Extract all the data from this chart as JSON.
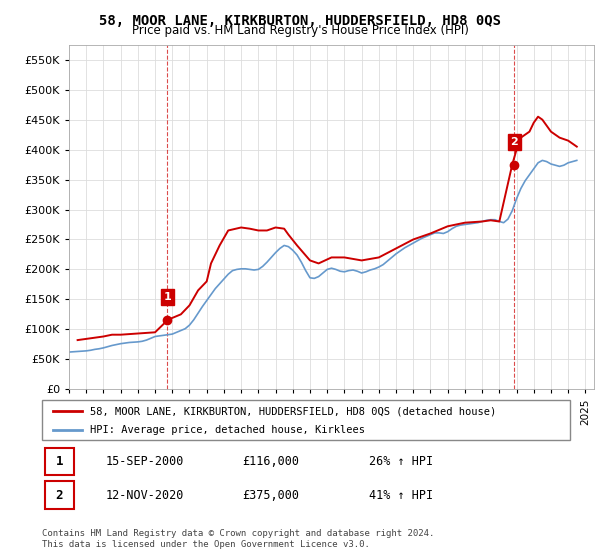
{
  "title": "58, MOOR LANE, KIRKBURTON, HUDDERSFIELD, HD8 0QS",
  "subtitle": "Price paid vs. HM Land Registry's House Price Index (HPI)",
  "legend_line1": "58, MOOR LANE, KIRKBURTON, HUDDERSFIELD, HD8 0QS (detached house)",
  "legend_line2": "HPI: Average price, detached house, Kirklees",
  "annotation1_label": "1",
  "annotation1_date": "15-SEP-2000",
  "annotation1_price": "£116,000",
  "annotation1_hpi": "26% ↑ HPI",
  "annotation2_label": "2",
  "annotation2_date": "12-NOV-2020",
  "annotation2_price": "£375,000",
  "annotation2_hpi": "41% ↑ HPI",
  "footnote": "Contains HM Land Registry data © Crown copyright and database right 2024.\nThis data is licensed under the Open Government Licence v3.0.",
  "red_color": "#cc0000",
  "blue_color": "#6699cc",
  "annotation_dot_color1": "#cc0000",
  "annotation_dot_color2": "#cc0000",
  "marker_box_color": "#cc2222",
  "ylim": [
    0,
    575000
  ],
  "yticks": [
    0,
    50000,
    100000,
    150000,
    200000,
    250000,
    300000,
    350000,
    400000,
    450000,
    500000,
    550000
  ],
  "hpi_data": {
    "dates": [
      1995.0,
      1995.25,
      1995.5,
      1995.75,
      1996.0,
      1996.25,
      1996.5,
      1996.75,
      1997.0,
      1997.25,
      1997.5,
      1997.75,
      1998.0,
      1998.25,
      1998.5,
      1998.75,
      1999.0,
      1999.25,
      1999.5,
      1999.75,
      2000.0,
      2000.25,
      2000.5,
      2000.75,
      2001.0,
      2001.25,
      2001.5,
      2001.75,
      2002.0,
      2002.25,
      2002.5,
      2002.75,
      2003.0,
      2003.25,
      2003.5,
      2003.75,
      2004.0,
      2004.25,
      2004.5,
      2004.75,
      2005.0,
      2005.25,
      2005.5,
      2005.75,
      2006.0,
      2006.25,
      2006.5,
      2006.75,
      2007.0,
      2007.25,
      2007.5,
      2007.75,
      2008.0,
      2008.25,
      2008.5,
      2008.75,
      2009.0,
      2009.25,
      2009.5,
      2009.75,
      2010.0,
      2010.25,
      2010.5,
      2010.75,
      2011.0,
      2011.25,
      2011.5,
      2011.75,
      2012.0,
      2012.25,
      2012.5,
      2012.75,
      2013.0,
      2013.25,
      2013.5,
      2013.75,
      2014.0,
      2014.25,
      2014.5,
      2014.75,
      2015.0,
      2015.25,
      2015.5,
      2015.75,
      2016.0,
      2016.25,
      2016.5,
      2016.75,
      2017.0,
      2017.25,
      2017.5,
      2017.75,
      2018.0,
      2018.25,
      2018.5,
      2018.75,
      2019.0,
      2019.25,
      2019.5,
      2019.75,
      2020.0,
      2020.25,
      2020.5,
      2020.75,
      2021.0,
      2021.25,
      2021.5,
      2021.75,
      2022.0,
      2022.25,
      2022.5,
      2022.75,
      2023.0,
      2023.25,
      2023.5,
      2023.75,
      2024.0,
      2024.25,
      2024.5
    ],
    "values": [
      62000,
      62500,
      63000,
      63500,
      64000,
      65000,
      66500,
      67500,
      69000,
      71000,
      73000,
      74500,
      76000,
      77000,
      78000,
      78500,
      79000,
      80000,
      82000,
      85000,
      88000,
      89000,
      90000,
      91000,
      92000,
      95000,
      98000,
      101000,
      107000,
      116000,
      127000,
      138000,
      148000,
      158000,
      168000,
      176000,
      184000,
      192000,
      198000,
      200000,
      201000,
      201000,
      200000,
      199000,
      200000,
      205000,
      212000,
      220000,
      228000,
      235000,
      240000,
      238000,
      232000,
      224000,
      212000,
      198000,
      186000,
      185000,
      188000,
      194000,
      200000,
      202000,
      200000,
      197000,
      196000,
      198000,
      199000,
      197000,
      194000,
      196000,
      199000,
      201000,
      204000,
      208000,
      214000,
      220000,
      226000,
      231000,
      236000,
      240000,
      244000,
      248000,
      252000,
      255000,
      258000,
      261000,
      261000,
      260000,
      263000,
      268000,
      272000,
      274000,
      275000,
      276000,
      277000,
      278000,
      280000,
      282000,
      283000,
      283000,
      280000,
      278000,
      284000,
      298000,
      318000,
      335000,
      348000,
      358000,
      368000,
      378000,
      382000,
      380000,
      376000,
      374000,
      372000,
      374000,
      378000,
      380000,
      382000
    ]
  },
  "property_data": {
    "dates": [
      1995.5,
      1996.0,
      1996.5,
      1997.0,
      1997.5,
      1998.0,
      1998.5,
      1999.0,
      1999.5,
      2000.0,
      2000.75,
      2001.5,
      2002.0,
      2002.5,
      2003.0,
      2003.25,
      2003.75,
      2004.25,
      2005.0,
      2005.5,
      2006.0,
      2006.5,
      2007.0,
      2007.5,
      2007.75,
      2008.25,
      2009.0,
      2009.5,
      2010.25,
      2011.0,
      2012.0,
      2013.0,
      2014.0,
      2015.0,
      2016.0,
      2017.0,
      2018.0,
      2019.0,
      2019.5,
      2020.0,
      2020.75,
      2021.0,
      2021.25,
      2021.75,
      2022.0,
      2022.25,
      2022.5,
      2022.75,
      2023.0,
      2023.5,
      2024.0,
      2024.25,
      2024.5
    ],
    "values": [
      82000,
      84000,
      86000,
      88000,
      91000,
      91000,
      92000,
      93000,
      94000,
      95000,
      116000,
      125000,
      140000,
      165000,
      180000,
      210000,
      240000,
      265000,
      270000,
      268000,
      265000,
      265000,
      270000,
      268000,
      258000,
      240000,
      215000,
      210000,
      220000,
      220000,
      215000,
      220000,
      235000,
      250000,
      260000,
      272000,
      278000,
      280000,
      282000,
      280000,
      375000,
      400000,
      420000,
      430000,
      445000,
      455000,
      450000,
      440000,
      430000,
      420000,
      415000,
      410000,
      405000
    ]
  },
  "sale1_x": 2000.71,
  "sale1_y": 116000,
  "sale2_x": 2020.87,
  "sale2_y": 375000,
  "vline1_x": 2000.71,
  "vline2_x": 2020.87,
  "xmin": 1995,
  "xmax": 2025.5
}
